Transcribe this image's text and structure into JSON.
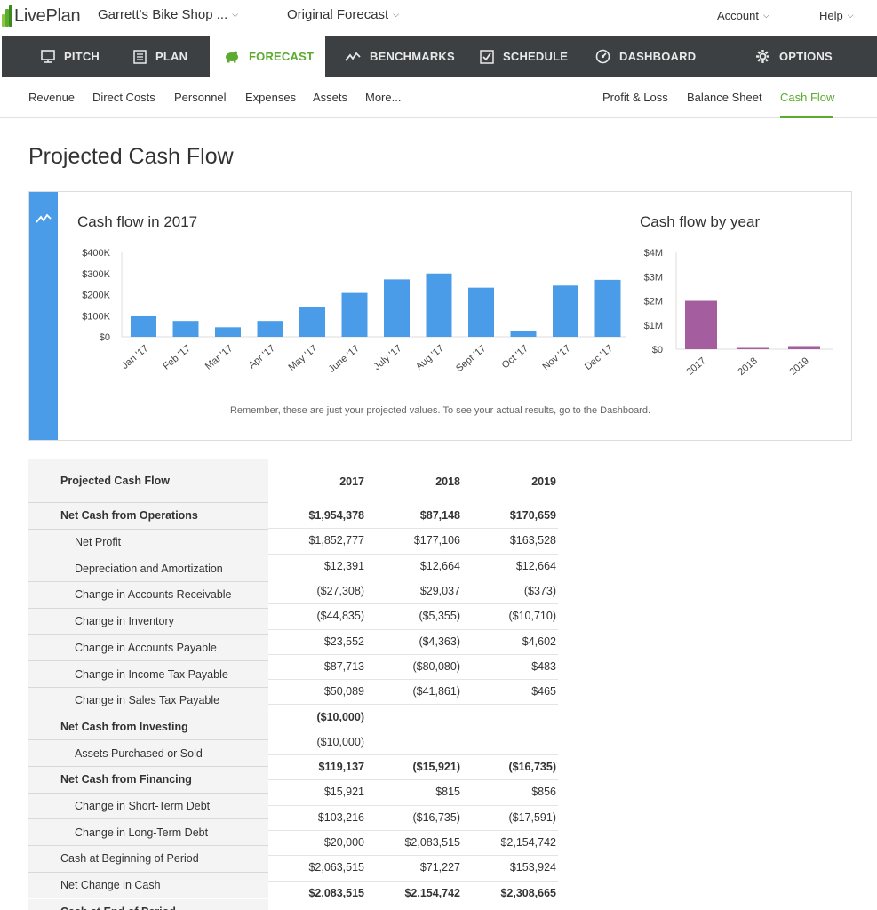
{
  "colors": {
    "accent": "#5bab2f",
    "nav_bg": "#3c4043",
    "chart_blue": "#4a9ce8",
    "chart_purple": "#a45e9f"
  },
  "top": {
    "logo_text": "LivePlan",
    "business": "Garrett's Bike Shop ...",
    "forecast": "Original Forecast",
    "account": "Account",
    "help": "Help"
  },
  "nav": [
    {
      "label": "PITCH",
      "icon": "monitor-icon"
    },
    {
      "label": "PLAN",
      "icon": "document-icon"
    },
    {
      "label": "FORECAST",
      "icon": "piggy-bank-icon",
      "active": true
    },
    {
      "label": "BENCHMARKS",
      "icon": "trend-icon"
    },
    {
      "label": "SCHEDULE",
      "icon": "checkbox-icon"
    },
    {
      "label": "DASHBOARD",
      "icon": "gauge-icon"
    },
    {
      "label": "OPTIONS",
      "icon": "gear-icon"
    }
  ],
  "subnav_left": [
    "Revenue",
    "Direct Costs",
    "Personnel",
    "Expenses",
    "Assets",
    "More..."
  ],
  "subnav_right": [
    "Profit & Loss",
    "Balance Sheet",
    "Cash Flow"
  ],
  "page_title": "Projected Cash Flow",
  "card_note": "Remember, these are just your projected values. To see your actual results, go to the Dashboard.",
  "chart_data": [
    {
      "type": "bar",
      "title": "Cash flow in 2017",
      "categories": [
        "Jan '17",
        "Feb '17",
        "Mar '17",
        "Apr '17",
        "May '17",
        "June '17",
        "July '17",
        "Aug '17",
        "Sept '17",
        "Oct '17",
        "Nov '17",
        "Dec '17"
      ],
      "values": [
        97000,
        75000,
        45000,
        75000,
        140000,
        208000,
        272000,
        300000,
        233000,
        28000,
        243000,
        270000
      ],
      "yticks": [
        "$0",
        "$100K",
        "$200K",
        "$300K",
        "$400K"
      ],
      "ylim": [
        0,
        400000
      ],
      "color": "#4a9ce8",
      "grid": false
    },
    {
      "type": "bar",
      "title": "Cash flow by year",
      "categories": [
        "2017",
        "2018",
        "2019"
      ],
      "values": [
        2000000,
        50000,
        130000
      ],
      "yticks": [
        "$0",
        "$1M",
        "$2M",
        "$3M",
        "$4M"
      ],
      "ylim": [
        0,
        4000000
      ],
      "color": "#a45e9f",
      "grid": false
    }
  ],
  "table": {
    "header": {
      "label": "Projected Cash Flow",
      "cols": [
        "2017",
        "2018",
        "2019"
      ]
    },
    "rows": [
      {
        "label": "Net Cash from Operations",
        "style": "bold",
        "values": [
          "$1,954,378",
          "$87,148",
          "$170,659"
        ],
        "vbold": true
      },
      {
        "label": "Net Profit",
        "style": "indent",
        "values": [
          "$1,852,777",
          "$177,106",
          "$163,528"
        ]
      },
      {
        "label": "Depreciation and Amortization",
        "style": "indent",
        "values": [
          "$12,391",
          "$12,664",
          "$12,664"
        ]
      },
      {
        "label": "Change in Accounts Receivable",
        "style": "indent",
        "values": [
          "($27,308)",
          "$29,037",
          "($373)"
        ]
      },
      {
        "label": "Change in Inventory",
        "style": "indent",
        "values": [
          "($44,835)",
          "($5,355)",
          "($10,710)"
        ]
      },
      {
        "label": "Change in Accounts Payable",
        "style": "indent",
        "values": [
          "$23,552",
          "($4,363)",
          "$4,602"
        ]
      },
      {
        "label": "Change in Income Tax Payable",
        "style": "indent",
        "values": [
          "$87,713",
          "($80,080)",
          "$483"
        ]
      },
      {
        "label": "Change in Sales Tax Payable",
        "style": "indent",
        "values": [
          "$50,089",
          "($41,861)",
          "$465"
        ]
      },
      {
        "label": "Net Cash from Investing",
        "style": "bold",
        "values": [
          "($10,000)",
          "",
          ""
        ],
        "vbold": true
      },
      {
        "label": "Assets Purchased or Sold",
        "style": "indent",
        "values": [
          "($10,000)",
          "",
          ""
        ]
      },
      {
        "label": "Net Cash from Financing",
        "style": "bold",
        "values": [
          "$119,137",
          "($15,921)",
          "($16,735)"
        ],
        "vbold": true
      },
      {
        "label": "Change in Short-Term Debt",
        "style": "indent",
        "values": [
          "$15,921",
          "$815",
          "$856"
        ]
      },
      {
        "label": "Change in Long-Term Debt",
        "style": "indent",
        "values": [
          "$103,216",
          "($16,735)",
          "($17,591)"
        ]
      },
      {
        "label": "Cash at Beginning of Period",
        "style": "noindent",
        "values": [
          "$20,000",
          "$2,083,515",
          "$2,154,742"
        ]
      },
      {
        "label": "Net Change in Cash",
        "style": "noindent",
        "values": [
          "$2,063,515",
          "$71,227",
          "$153,924"
        ]
      },
      {
        "label": "Cash at End of Period",
        "style": "bold",
        "values": [
          "$2,083,515",
          "$2,154,742",
          "$2,308,665"
        ],
        "vbold": true
      }
    ]
  }
}
